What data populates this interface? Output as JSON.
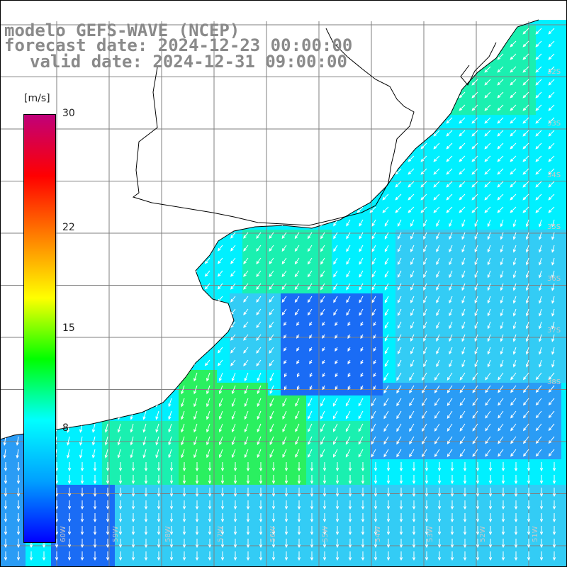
{
  "title": {
    "line1": "modelo GEFS-WAVE (NCEP)",
    "line2": "forecast date: 2024-12-23 00:00:00",
    "line3": "valid date: 2024-12-31 09:00:00"
  },
  "colorbar": {
    "units": "[m/s]",
    "min": 0,
    "max": 30,
    "tick_labels": [
      "30",
      "22",
      "15",
      "8"
    ],
    "tick_values": [
      30,
      22,
      15,
      8
    ],
    "colors": [
      "#0000ff",
      "#00a0ff",
      "#00ffff",
      "#00ff00",
      "#ffff00",
      "#ff8000",
      "#ff0000",
      "#c0007a"
    ]
  },
  "map": {
    "ocean_colors": {
      "deep_blue": "#1a6cf5",
      "blue": "#2a9cf5",
      "light_blue": "#33ccf5",
      "cyan": "#00f0ff",
      "aqua_green": "#1af0b0",
      "green": "#2af060"
    },
    "land_color": "#ffffff",
    "grid_color": "#7f7f7f",
    "arrow_color": "#ffffff",
    "lat_labels": [
      "32S",
      "33S",
      "34S",
      "35S",
      "36S",
      "37S",
      "38S"
    ],
    "lon_labels": [
      "60W",
      "59W",
      "58W",
      "57W",
      "56W",
      "55W",
      "54W",
      "53W",
      "52W",
      "51W"
    ]
  }
}
